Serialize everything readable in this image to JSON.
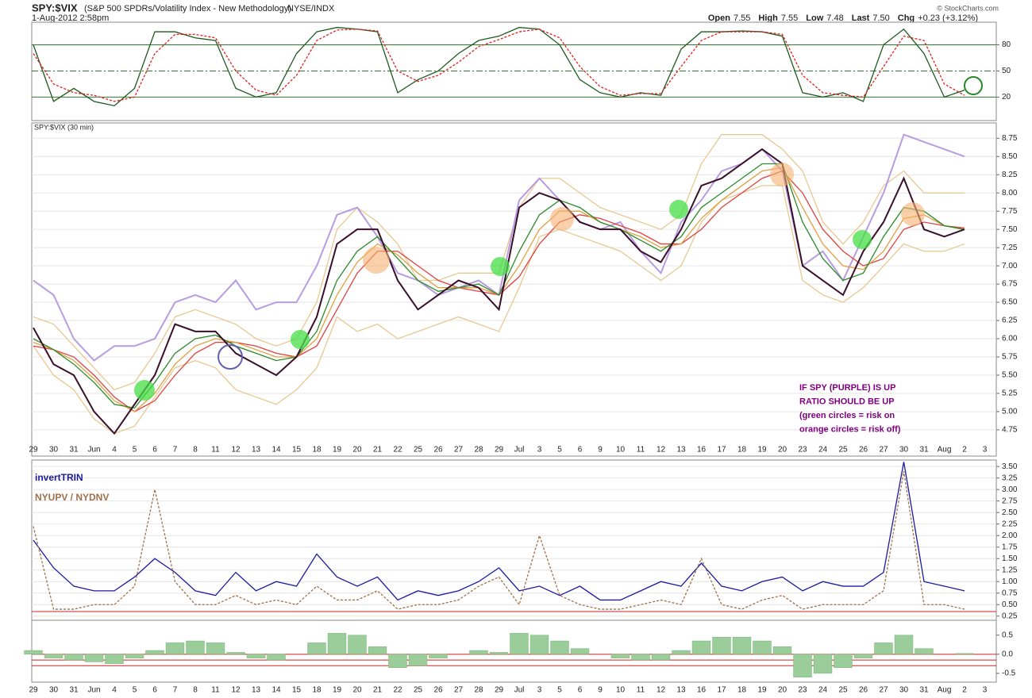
{
  "header": {
    "symbol": "SPY:$VIX",
    "description": "(S&P 500 SPDRs/Volatility Index - New Methodology)",
    "exchange": "NYSE/INDX",
    "date": "1-Aug-2012 2:58pm",
    "quote": [
      {
        "label": "Open",
        "value": 7.55
      },
      {
        "label": "High",
        "value": 7.55
      },
      {
        "label": "Low",
        "value": 7.48
      },
      {
        "label": "Last",
        "value": 7.5,
        "value_label": "7.50"
      },
      {
        "label": "Chg",
        "value": "+0.23 (+3.12%)"
      }
    ],
    "copyright": "© StockCharts.com"
  },
  "chart_data": [
    {
      "type": "line",
      "ylim": [
        -7,
        106
      ],
      "yticks": [
        80,
        50,
        20
      ],
      "grid": true,
      "series": [
        {
          "color": "#1e5a1e",
          "values": [
            80,
            15,
            30,
            15,
            10,
            30,
            95,
            95,
            88,
            85,
            30,
            20,
            25,
            70,
            95,
            100,
            98,
            95,
            25,
            40,
            50,
            70,
            85,
            90,
            100,
            98,
            80,
            40,
            25,
            20,
            25,
            22,
            75,
            95,
            95,
            96,
            95,
            90,
            25,
            20,
            25,
            15,
            80,
            98,
            70,
            20,
            28,
            null
          ]
        },
        {
          "color": "#e02020",
          "dash": true,
          "values": [
            70,
            35,
            25,
            22,
            15,
            20,
            70,
            92,
            92,
            88,
            50,
            28,
            22,
            45,
            85,
            97,
            98,
            96,
            50,
            38,
            45,
            60,
            78,
            86,
            95,
            98,
            88,
            55,
            32,
            22,
            24,
            24,
            55,
            85,
            95,
            95,
            95,
            92,
            45,
            25,
            22,
            20,
            55,
            90,
            85,
            35,
            22,
            null
          ]
        }
      ]
    },
    {
      "type": "line",
      "title": "SPY:$VIX (30 min)",
      "ylim": [
        4.39,
        8.96
      ],
      "grid": true,
      "categories": [
        "29",
        "30",
        "31",
        "Jun",
        "4",
        "5",
        "6",
        "7",
        "8",
        "11",
        "12",
        "13",
        "14",
        "15",
        "18",
        "19",
        "20",
        "21",
        "22",
        "25",
        "26",
        "27",
        "28",
        "29",
        "Jul",
        "3",
        "5",
        "6",
        "9",
        "10",
        "11",
        "12",
        "13",
        "16",
        "17",
        "18",
        "19",
        "20",
        "23",
        "24",
        "25",
        "26",
        "27",
        "30",
        "31",
        "Aug",
        "2",
        "3"
      ],
      "yticks": [
        4.75,
        {
          "value": 5,
          "label": "5.00"
        },
        5.25,
        {
          "value": 5.5,
          "label": "5.50"
        },
        5.75,
        {
          "value": 6,
          "label": "6.00"
        },
        6.25,
        {
          "value": 6.5,
          "label": "6.50"
        },
        6.75,
        {
          "value": 7,
          "label": "7.00"
        },
        7.25,
        {
          "value": 7.5,
          "label": "7.50"
        },
        7.75,
        {
          "value": 8,
          "label": "8.00"
        },
        8.25,
        {
          "value": 8.5,
          "label": "8.50"
        },
        8.75
      ],
      "annotations": [
        "IF SPY (PURPLE) IS UP",
        "RATIO SHOULD BE UP",
        "(green circles = risk on",
        "orange circles = risk off)"
      ],
      "series": [
        {
          "color": "#e8c890",
          "values": [
            6.3,
            6.2,
            5.9,
            5.6,
            5.3,
            5.4,
            5.8,
            6.3,
            6.4,
            6.3,
            6.2,
            6.0,
            5.9,
            6.0,
            6.5,
            7.5,
            7.8,
            7.6,
            7.3,
            6.8,
            6.8,
            6.9,
            6.9,
            6.9,
            7.8,
            8.2,
            8.2,
            8.0,
            7.8,
            7.7,
            7.6,
            7.5,
            7.7,
            8.4,
            8.8,
            8.8,
            8.8,
            8.6,
            8.3,
            7.6,
            7.3,
            7.6,
            8.1,
            8.3,
            8.0,
            8.0,
            8.0,
            null
          ]
        },
        {
          "color": "#e8c890",
          "values": [
            5.9,
            5.5,
            5.3,
            4.9,
            4.7,
            4.8,
            5.2,
            5.6,
            5.7,
            5.6,
            5.3,
            5.2,
            5.1,
            5.3,
            5.6,
            6.3,
            6.1,
            6.2,
            6.0,
            6.1,
            6.2,
            6.3,
            6.2,
            6.1,
            6.7,
            7.4,
            7.5,
            7.4,
            7.3,
            7.2,
            7.0,
            6.8,
            7.0,
            7.6,
            7.9,
            8.0,
            8.1,
            8.1,
            6.8,
            6.6,
            6.5,
            6.7,
            7.0,
            7.3,
            7.2,
            7.2,
            7.3,
            null
          ]
        },
        {
          "color": "#b89ce0",
          "width": 2,
          "values": [
            6.8,
            6.6,
            6.0,
            5.7,
            5.9,
            5.9,
            6.0,
            6.5,
            6.6,
            6.5,
            6.8,
            6.4,
            6.5,
            6.5,
            7.0,
            7.7,
            7.8,
            7.4,
            6.9,
            6.8,
            6.6,
            6.7,
            6.8,
            6.6,
            7.9,
            8.2,
            7.9,
            7.6,
            7.5,
            7.6,
            7.2,
            6.9,
            7.6,
            7.9,
            8.3,
            8.4,
            8.6,
            8.3,
            7.0,
            7.2,
            6.8,
            7.4,
            8.0,
            8.8,
            8.7,
            8.6,
            8.5,
            null
          ]
        },
        {
          "color": "#e04040",
          "values": [
            5.9,
            5.85,
            5.75,
            5.5,
            5.2,
            5.0,
            5.15,
            5.5,
            5.8,
            5.95,
            5.95,
            5.9,
            5.8,
            5.75,
            5.9,
            6.4,
            6.9,
            7.2,
            7.2,
            7.0,
            6.8,
            6.7,
            6.65,
            6.6,
            6.85,
            7.3,
            7.6,
            7.7,
            7.65,
            7.55,
            7.45,
            7.3,
            7.3,
            7.5,
            7.8,
            8.0,
            8.2,
            8.3,
            8.0,
            7.5,
            7.2,
            7.0,
            7.1,
            7.5,
            7.6,
            7.55,
            7.52,
            null
          ]
        },
        {
          "color": "#e0a040",
          "values": [
            5.95,
            5.85,
            5.7,
            5.45,
            5.15,
            5.0,
            5.25,
            5.65,
            5.9,
            6.0,
            5.95,
            5.85,
            5.75,
            5.75,
            6.0,
            6.6,
            7.05,
            7.3,
            7.15,
            6.9,
            6.7,
            6.7,
            6.7,
            6.6,
            7.0,
            7.5,
            7.75,
            7.75,
            7.6,
            7.5,
            7.4,
            7.25,
            7.3,
            7.65,
            7.9,
            8.1,
            8.3,
            8.35,
            7.8,
            7.3,
            7.0,
            6.95,
            7.2,
            7.65,
            7.7,
            7.55,
            7.5,
            null
          ]
        },
        {
          "color": "#2a8a2a",
          "values": [
            6.0,
            5.85,
            5.65,
            5.4,
            5.1,
            5.05,
            5.4,
            5.8,
            6.0,
            6.05,
            5.9,
            5.8,
            5.7,
            5.75,
            6.1,
            6.8,
            7.2,
            7.4,
            7.1,
            6.8,
            6.65,
            6.7,
            6.75,
            6.6,
            7.2,
            7.7,
            7.9,
            7.8,
            7.6,
            7.5,
            7.35,
            7.2,
            7.4,
            7.8,
            8.0,
            8.2,
            8.4,
            8.4,
            7.6,
            7.1,
            6.8,
            6.9,
            7.4,
            7.8,
            7.75,
            7.55,
            7.5,
            null
          ]
        },
        {
          "color": "#3a0f2a",
          "width": 2,
          "values": [
            6.15,
            5.65,
            5.5,
            5.0,
            4.7,
            5.1,
            5.5,
            6.2,
            6.1,
            6.1,
            5.8,
            5.65,
            5.5,
            5.75,
            6.3,
            7.3,
            7.5,
            7.5,
            6.8,
            6.4,
            6.6,
            6.8,
            6.7,
            6.4,
            7.8,
            8.0,
            7.9,
            7.6,
            7.5,
            7.5,
            7.2,
            7.05,
            7.5,
            8.1,
            8.2,
            8.4,
            8.6,
            8.4,
            7.0,
            6.8,
            6.6,
            7.2,
            7.6,
            8.2,
            7.5,
            7.4,
            7.5,
            null
          ]
        }
      ]
    },
    {
      "type": "line",
      "ylim": [
        0.16,
        3.64
      ],
      "grid": true,
      "reference_lines": [
        0.35
      ],
      "yticks": [
        0.25,
        {
          "value": 0.5,
          "label": "0.50"
        },
        0.75,
        {
          "value": 1,
          "label": "1.00"
        },
        1.25,
        {
          "value": 1.5,
          "label": "1.50"
        },
        1.75,
        {
          "value": 2,
          "label": "2.00"
        },
        2.25,
        {
          "value": 2.5,
          "label": "2.50"
        },
        2.75,
        {
          "value": 3,
          "label": "3.00"
        },
        3.25,
        {
          "value": 3.5,
          "label": "3.50"
        }
      ],
      "series": [
        {
          "name": "invertTRIN",
          "color": "#1a1aa0",
          "values": [
            1.9,
            1.3,
            0.9,
            0.8,
            0.8,
            1.1,
            1.5,
            1.2,
            0.8,
            0.7,
            1.2,
            0.8,
            1.0,
            0.9,
            1.6,
            1.1,
            0.9,
            1.1,
            0.6,
            0.8,
            0.7,
            0.8,
            1.0,
            1.3,
            0.8,
            0.9,
            0.7,
            0.9,
            0.6,
            0.6,
            0.8,
            1.0,
            0.9,
            1.4,
            0.9,
            0.8,
            1.0,
            1.1,
            0.8,
            1.0,
            0.9,
            0.9,
            1.2,
            3.6,
            1.0,
            0.9,
            0.8,
            null
          ]
        },
        {
          "name": "NYUPV / NYDNV",
          "color": "#a0704a",
          "dash": true,
          "values": [
            2.2,
            0.4,
            0.4,
            0.5,
            0.5,
            0.9,
            3.0,
            1.0,
            0.5,
            0.5,
            0.7,
            0.5,
            0.6,
            0.5,
            0.9,
            0.6,
            0.6,
            0.8,
            0.4,
            0.5,
            0.5,
            0.6,
            0.9,
            1.1,
            0.5,
            2.0,
            0.7,
            0.5,
            0.4,
            0.4,
            0.5,
            0.6,
            0.5,
            1.5,
            0.5,
            0.4,
            0.6,
            0.7,
            0.4,
            0.5,
            0.5,
            0.5,
            0.8,
            3.4,
            0.5,
            0.5,
            0.4,
            null
          ]
        }
      ]
    },
    {
      "type": "bar",
      "ylim": [
        -0.73,
        0.89
      ],
      "color": "#9acd9a",
      "reference_lines": [
        0,
        -0.15,
        -0.3
      ],
      "categories": [
        "29",
        "30",
        "31",
        "Jun",
        "4",
        "5",
        "6",
        "7",
        "8",
        "11",
        "12",
        "13",
        "14",
        "15",
        "18",
        "19",
        "20",
        "21",
        "22",
        "25",
        "26",
        "27",
        "28",
        "29",
        "Jul",
        "3",
        "5",
        "6",
        "9",
        "10",
        "11",
        "12",
        "13",
        "16",
        "17",
        "18",
        "19",
        "20",
        "23",
        "24",
        "25",
        "26",
        "27",
        "30",
        "31",
        "Aug",
        "2",
        "3"
      ],
      "yticks": [
        0.5,
        {
          "value": 0,
          "label": "0.0"
        },
        -0.5
      ],
      "values": [
        0.1,
        -0.1,
        -0.15,
        -0.2,
        -0.25,
        -0.1,
        0.1,
        0.3,
        0.35,
        0.3,
        0.05,
        -0.1,
        -0.15,
        0.0,
        0.3,
        0.55,
        0.5,
        0.2,
        -0.35,
        -0.3,
        -0.1,
        0.0,
        0.1,
        0.05,
        0.55,
        0.5,
        0.35,
        0.15,
        0.0,
        -0.1,
        -0.15,
        -0.15,
        0.1,
        0.35,
        0.45,
        0.45,
        0.35,
        0.2,
        -0.6,
        -0.5,
        -0.35,
        -0.1,
        0.3,
        0.5,
        0.15,
        0.0,
        0.02,
        null
      ]
    }
  ]
}
